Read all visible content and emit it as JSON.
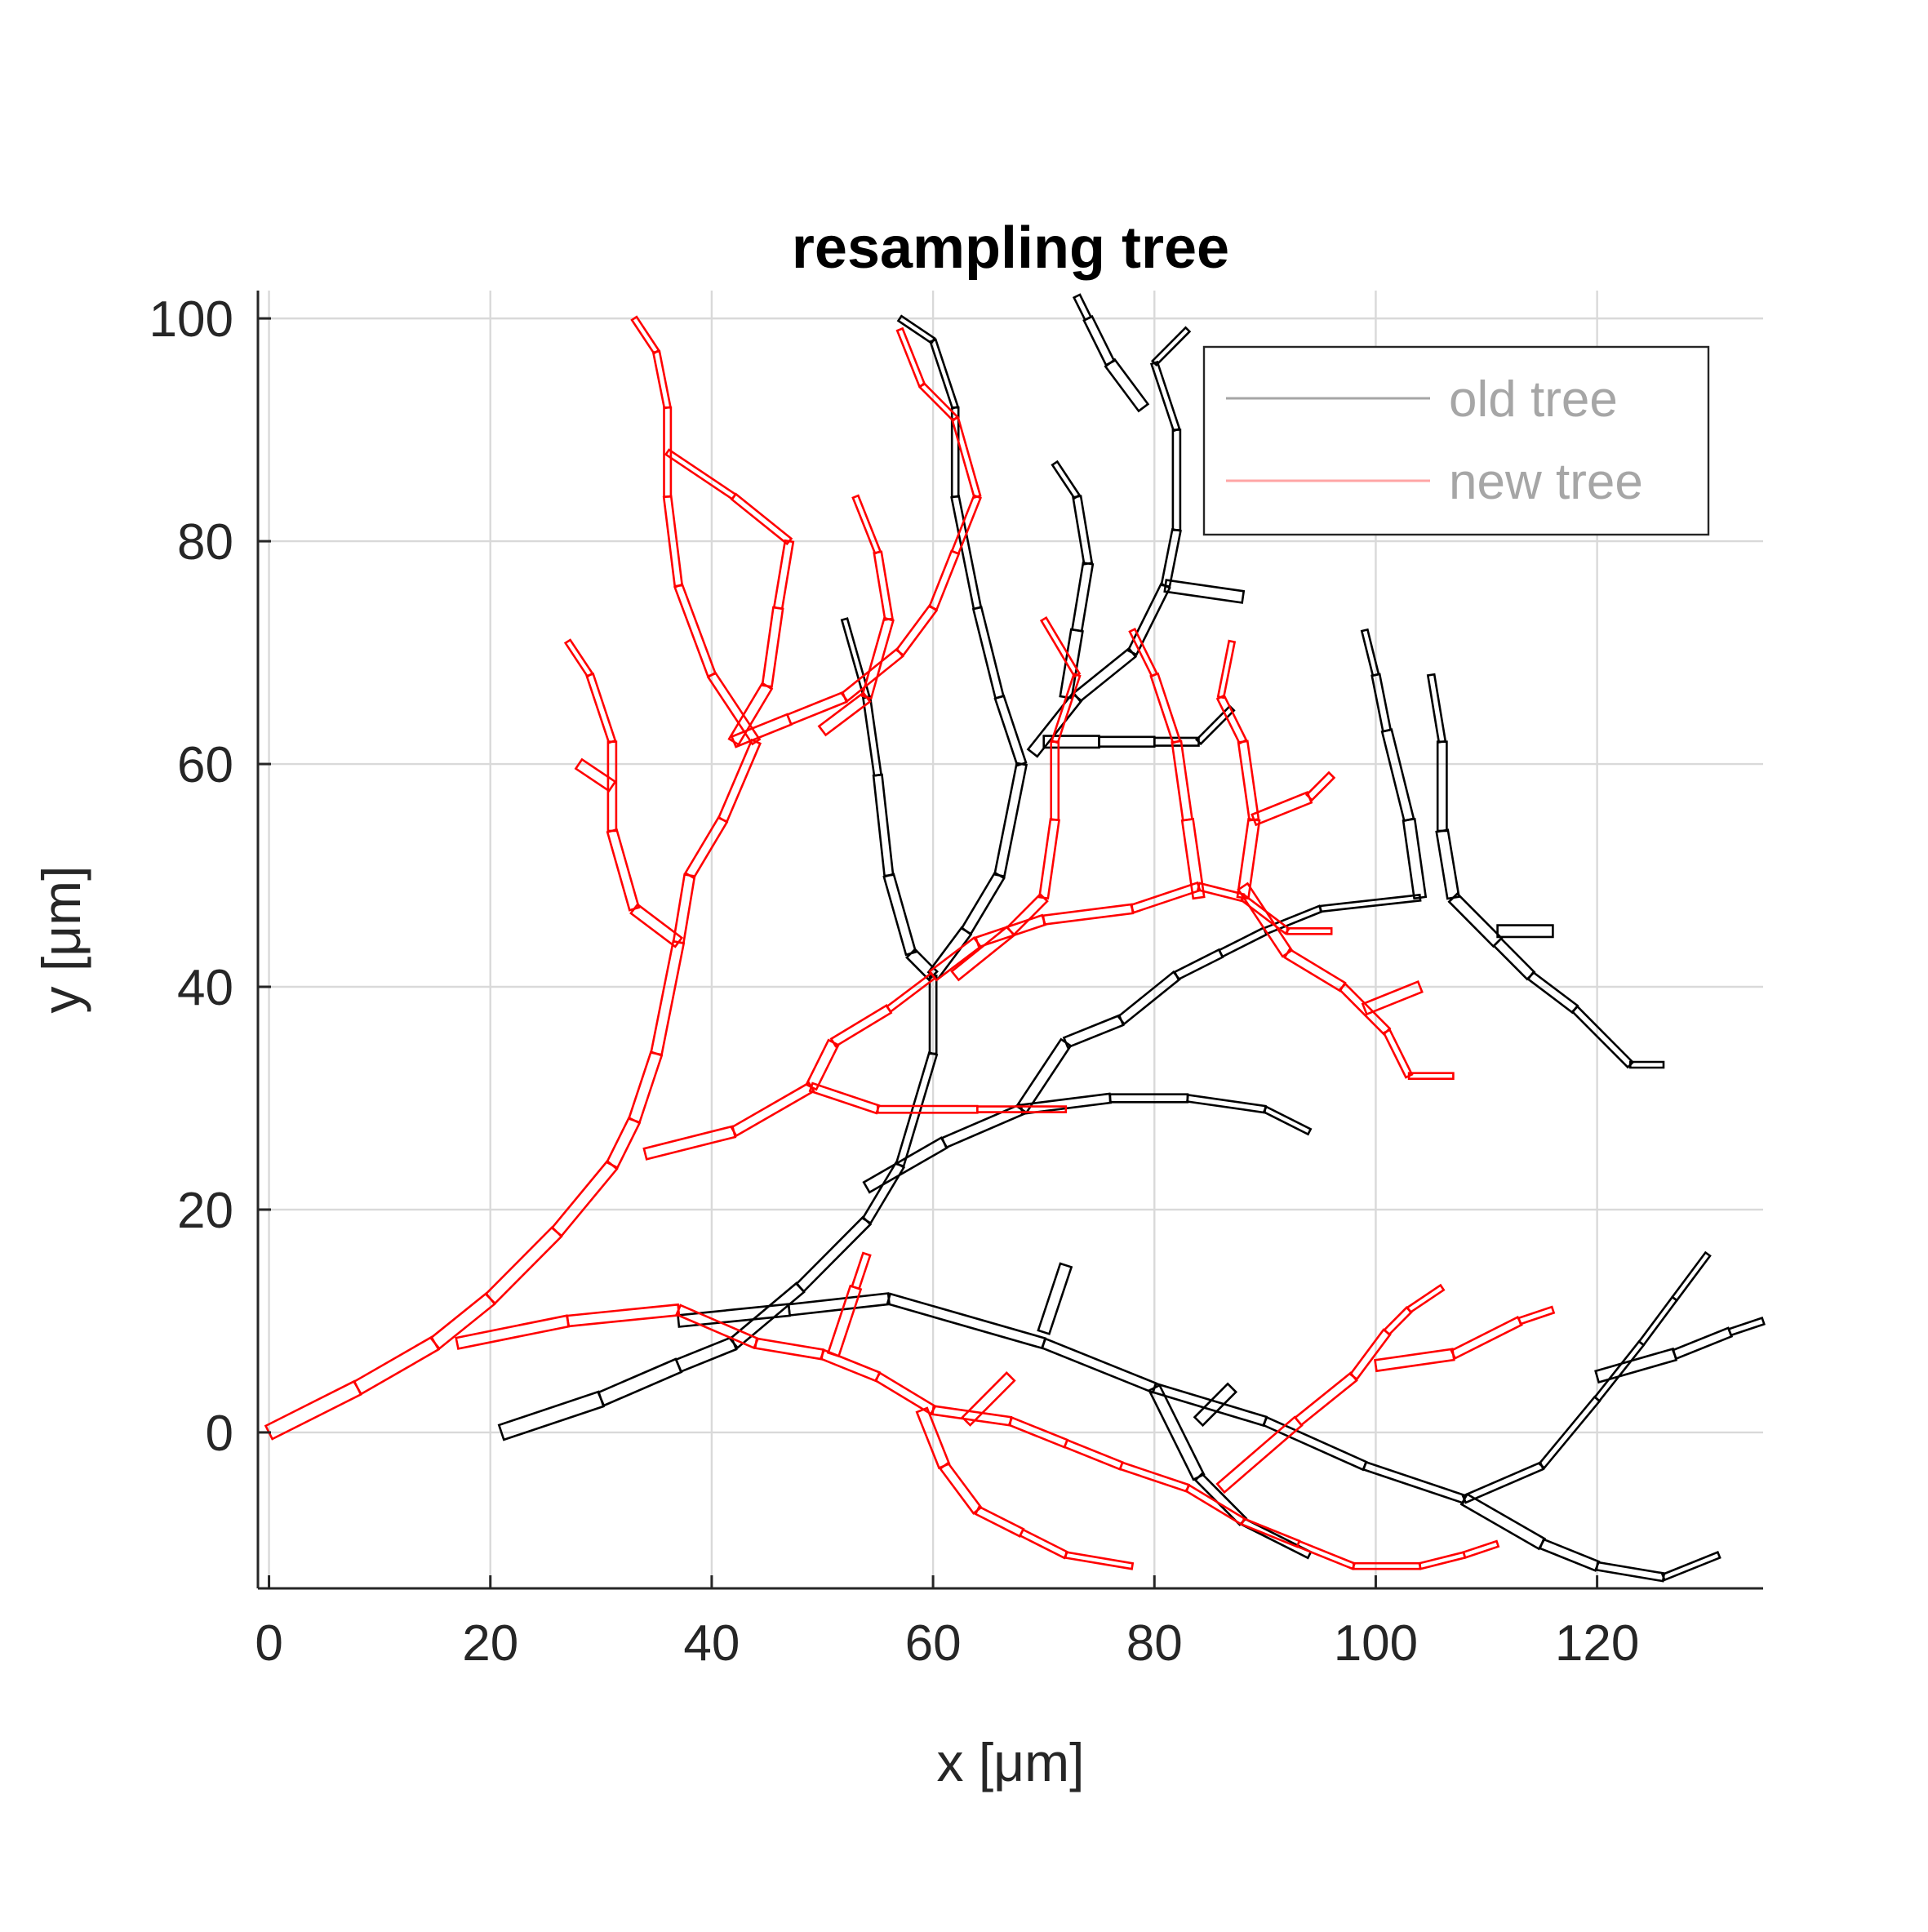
{
  "chart_data": {
    "type": "line",
    "title": "resampling tree",
    "xlabel": "x [μm]",
    "ylabel": "y [μm]",
    "xlim": [
      -1,
      135
    ],
    "ylim": [
      -14,
      102.5
    ],
    "xticks": [
      0,
      20,
      40,
      60,
      80,
      100,
      120
    ],
    "yticks": [
      0,
      20,
      40,
      60,
      80,
      100
    ],
    "grid": true,
    "legend": {
      "placement": "top-right"
    },
    "series": [
      {
        "name": "old tree",
        "color": "#000000",
        "branches": [
          [
            [
              21,
              0
            ],
            [
              30,
              3
            ],
            [
              37,
              6
            ],
            [
              42,
              8
            ],
            [
              48,
              13
            ],
            [
              54,
              19
            ],
            [
              57,
              24
            ],
            [
              60,
              34
            ],
            [
              60,
              41
            ]
          ],
          [
            [
              60,
              41
            ],
            [
              58,
              43
            ],
            [
              56,
              50
            ],
            [
              55,
              59
            ],
            [
              54,
              66
            ],
            [
              52,
              73
            ]
          ],
          [
            [
              60,
              41
            ],
            [
              63,
              45
            ],
            [
              66,
              50
            ],
            [
              68,
              60
            ],
            [
              66,
              66
            ],
            [
              64,
              74
            ],
            [
              62,
              84
            ],
            [
              62,
              92
            ],
            [
              60,
              98
            ],
            [
              57,
              100
            ]
          ],
          [
            [
              54,
              22
            ],
            [
              61,
              26
            ],
            [
              68,
              29
            ],
            [
              76,
              30
            ],
            [
              83,
              30
            ],
            [
              90,
              29
            ],
            [
              94,
              27
            ]
          ],
          [
            [
              68,
              29
            ],
            [
              72,
              35
            ],
            [
              77,
              37
            ],
            [
              82,
              41
            ],
            [
              86,
              43
            ],
            [
              90,
              45
            ],
            [
              95,
              47
            ],
            [
              104,
              48
            ]
          ],
          [
            [
              104,
              48
            ],
            [
              103,
              55
            ],
            [
              101,
              63
            ],
            [
              100,
              68
            ],
            [
              99,
              72
            ]
          ],
          [
            [
              107,
              48
            ],
            [
              111,
              44
            ],
            [
              114,
              41
            ],
            [
              118,
              38
            ],
            [
              123,
              33
            ],
            [
              126,
              33
            ]
          ],
          [
            [
              107,
              48
            ],
            [
              106,
              54
            ],
            [
              106,
              62
            ],
            [
              105,
              68
            ]
          ],
          [
            [
              111,
              45
            ],
            [
              116,
              45
            ]
          ],
          [
            [
              69,
              61
            ],
            [
              73,
              66
            ],
            [
              78,
              70
            ],
            [
              81,
              76
            ],
            [
              82,
              81
            ],
            [
              82,
              90
            ],
            [
              80,
              96
            ],
            [
              83,
              99
            ]
          ],
          [
            [
              70,
              62
            ],
            [
              75,
              62
            ],
            [
              80,
              62
            ],
            [
              84,
              62
            ],
            [
              87,
              65
            ]
          ],
          [
            [
              72,
              66
            ],
            [
              73,
              72
            ],
            [
              74,
              78
            ],
            [
              73,
              84
            ],
            [
              71,
              87
            ]
          ],
          [
            [
              81,
              76
            ],
            [
              88,
              75
            ]
          ],
          [
            [
              79,
              92
            ],
            [
              76,
              96
            ],
            [
              74,
              100
            ],
            [
              73,
              102
            ]
          ],
          [
            [
              37,
              10
            ],
            [
              47,
              11
            ],
            [
              56,
              12
            ],
            [
              70,
              8
            ],
            [
              80,
              4
            ],
            [
              90,
              1
            ],
            [
              99,
              -3
            ],
            [
              108,
              -6
            ],
            [
              115,
              -3
            ],
            [
              120,
              3
            ],
            [
              124,
              8
            ],
            [
              127,
              12
            ],
            [
              130,
              16
            ]
          ],
          [
            [
              108,
              -6
            ],
            [
              115,
              -10
            ],
            [
              120,
              -12
            ],
            [
              126,
              -13
            ],
            [
              131,
              -11
            ]
          ],
          [
            [
              120,
              5
            ],
            [
              127,
              7
            ],
            [
              132,
              9
            ],
            [
              135,
              10
            ]
          ],
          [
            [
              70,
              9
            ],
            [
              72,
              15
            ]
          ],
          [
            [
              80,
              4
            ],
            [
              84,
              -4
            ],
            [
              88,
              -8
            ],
            [
              94,
              -11
            ]
          ],
          [
            [
              84,
              1
            ],
            [
              87,
              4
            ]
          ]
        ]
      },
      {
        "name": "new tree",
        "color": "#ff0000",
        "branches": [
          [
            [
              0,
              0
            ],
            [
              8,
              4
            ],
            [
              15,
              8
            ],
            [
              20,
              12
            ],
            [
              26,
              18
            ],
            [
              31,
              24
            ],
            [
              33,
              28
            ],
            [
              35,
              34
            ],
            [
              37,
              44
            ],
            [
              38,
              50
            ],
            [
              41,
              55
            ],
            [
              44,
              62
            ],
            [
              40,
              68
            ],
            [
              37,
              76
            ],
            [
              36,
              84
            ],
            [
              36,
              92
            ],
            [
              35,
              97
            ],
            [
              33,
              100
            ]
          ],
          [
            [
              37,
              44
            ],
            [
              33,
              47
            ],
            [
              31,
              54
            ],
            [
              31,
              62
            ],
            [
              29,
              68
            ],
            [
              27,
              71
            ]
          ],
          [
            [
              31,
              58
            ],
            [
              28,
              60
            ]
          ],
          [
            [
              42,
              62
            ],
            [
              47,
              64
            ],
            [
              52,
              66
            ],
            [
              57,
              70
            ],
            [
              60,
              74
            ],
            [
              62,
              79
            ],
            [
              64,
              84
            ],
            [
              62,
              91
            ],
            [
              59,
              94
            ],
            [
              57,
              99
            ]
          ],
          [
            [
              42,
              62
            ],
            [
              45,
              67
            ],
            [
              46,
              74
            ],
            [
              47,
              80
            ],
            [
              42,
              84
            ],
            [
              36,
              88
            ]
          ],
          [
            [
              50,
              63
            ],
            [
              54,
              66
            ],
            [
              56,
              73
            ],
            [
              55,
              79
            ],
            [
              53,
              84
            ]
          ],
          [
            [
              60,
              41
            ],
            [
              64,
              44
            ],
            [
              70,
              46
            ],
            [
              78,
              47
            ],
            [
              84,
              49
            ],
            [
              88,
              48
            ],
            [
              92,
              45
            ],
            [
              96,
              45
            ]
          ],
          [
            [
              34,
              25
            ],
            [
              42,
              27
            ],
            [
              49,
              31
            ],
            [
              55,
              29
            ],
            [
              64,
              29
            ],
            [
              72,
              29
            ]
          ],
          [
            [
              49,
              31
            ],
            [
              51,
              35
            ],
            [
              56,
              38
            ],
            [
              60,
              41
            ]
          ],
          [
            [
              62,
              41
            ],
            [
              67,
              45
            ],
            [
              70,
              48
            ],
            [
              71,
              55
            ],
            [
              71,
              62
            ],
            [
              73,
              68
            ],
            [
              70,
              73
            ]
          ],
          [
            [
              84,
              48
            ],
            [
              83,
              55
            ],
            [
              82,
              62
            ],
            [
              80,
              68
            ],
            [
              78,
              72
            ]
          ],
          [
            [
              88,
              48
            ],
            [
              89,
              55
            ],
            [
              88,
              62
            ],
            [
              86,
              66
            ],
            [
              87,
              71
            ]
          ],
          [
            [
              88,
              49
            ],
            [
              92,
              43
            ],
            [
              97,
              40
            ],
            [
              101,
              36
            ],
            [
              103,
              32
            ],
            [
              107,
              32
            ]
          ],
          [
            [
              89,
              55
            ],
            [
              94,
              57
            ],
            [
              96,
              59
            ]
          ],
          [
            [
              99,
              38
            ],
            [
              104,
              40
            ]
          ],
          [
            [
              17,
              8
            ],
            [
              27,
              10
            ],
            [
              37,
              11
            ],
            [
              44,
              8
            ],
            [
              50,
              7
            ],
            [
              55,
              5
            ],
            [
              60,
              2
            ],
            [
              67,
              1
            ],
            [
              72,
              -1
            ],
            [
              77,
              -3
            ],
            [
              83,
              -5
            ],
            [
              88,
              -8
            ],
            [
              93,
              -10
            ],
            [
              98,
              -12
            ],
            [
              104,
              -12
            ],
            [
              108,
              -11
            ],
            [
              111,
              -10
            ]
          ],
          [
            [
              51,
              7
            ],
            [
              53,
              13
            ],
            [
              54,
              16
            ]
          ],
          [
            [
              59,
              2
            ],
            [
              61,
              -3
            ],
            [
              64,
              -7
            ],
            [
              68,
              -9
            ],
            [
              72,
              -11
            ],
            [
              78,
              -12
            ]
          ],
          [
            [
              63,
              1
            ],
            [
              67,
              5
            ]
          ],
          [
            [
              86,
              -5
            ],
            [
              93,
              1
            ],
            [
              98,
              5
            ],
            [
              101,
              9
            ],
            [
              103,
              11
            ],
            [
              106,
              13
            ]
          ],
          [
            [
              100,
              6
            ],
            [
              107,
              7
            ],
            [
              113,
              10
            ],
            [
              116,
              11
            ]
          ]
        ]
      }
    ]
  }
}
